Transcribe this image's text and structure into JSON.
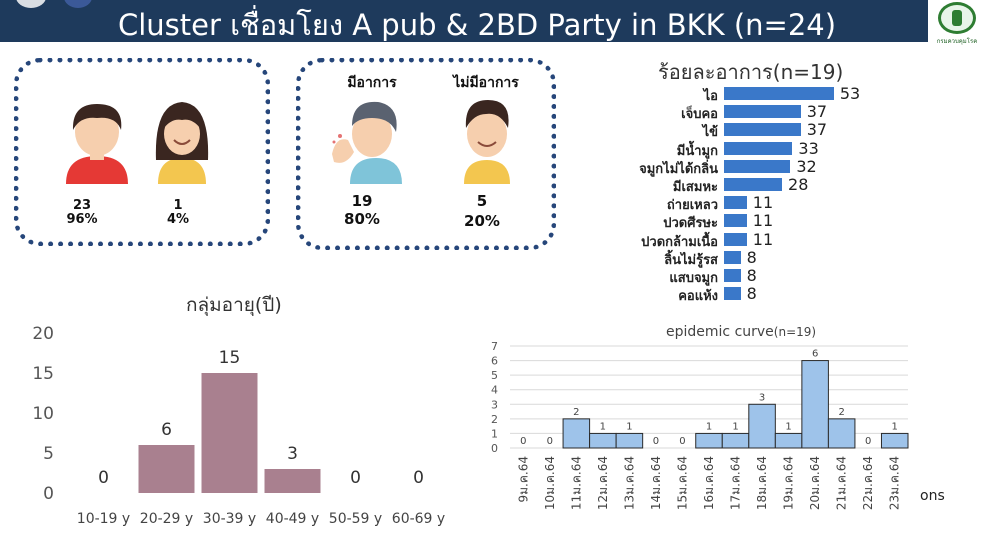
{
  "header": {
    "title": "Cluster เชื่อมโยง A pub & 2BD Party in BKK (n=24)",
    "logo_text": "กรมควบคุมโรค"
  },
  "gender": {
    "male": {
      "count": "23",
      "pct": "96%"
    },
    "female": {
      "count": "1",
      "pct": "4%"
    }
  },
  "symptom_status": {
    "symptomatic": {
      "label": "มีอาการ",
      "count": "19",
      "pct": "80%"
    },
    "asymptomatic": {
      "label": "ไม่มีอาการ",
      "count": "5",
      "pct": "20%"
    }
  },
  "colors": {
    "header": "#1e3a5c",
    "symptom_bar": "#3a78c9",
    "age_bar": "#a9808f",
    "epi_bar": "#9ec3ea"
  },
  "chart_data": [
    {
      "type": "bar",
      "orientation": "horizontal",
      "title": "ร้อยละอาการ(n=19)",
      "categories": [
        "ไอ",
        "เจ็บคอ",
        "ไข้",
        "มีน้ำมูก",
        "จมูกไม่ได้กลิ่น",
        "มีเสมหะ",
        "ถ่ายเหลว",
        "ปวดศีรษะ",
        "ปวดกล้ามเนื้อ",
        "ลิ้นไม่รู้รส",
        "แสบจมูก",
        "คอแห้ง"
      ],
      "values": [
        53,
        37,
        37,
        33,
        32,
        28,
        11,
        11,
        11,
        8,
        8,
        8
      ],
      "xlim": [
        0,
        55
      ]
    },
    {
      "type": "bar",
      "title": "กลุ่มอายุ(ปี)",
      "categories": [
        "10-19 y",
        "20-29 y",
        "30-39 y",
        "40-49 y",
        "50-59 y",
        "60-69 y"
      ],
      "values": [
        0,
        6,
        15,
        3,
        0,
        0
      ],
      "ylim": [
        0,
        20
      ],
      "yticks": [
        0,
        5,
        10,
        15,
        20
      ],
      "grid": false
    },
    {
      "type": "bar",
      "title": "epidemic curve",
      "title_suffix": "(n=19)",
      "categories": [
        "9ม.ค.64",
        "10ม.ค.64",
        "11ม.ค.64",
        "12ม.ค.64",
        "13ม.ค.64",
        "14ม.ค.64",
        "15ม.ค.64",
        "16ม.ค.64",
        "17ม.ค.64",
        "18ม.ค.64",
        "19ม.ค.64",
        "20ม.ค.64",
        "21ม.ค.64",
        "22ม.ค.64",
        "23ม.ค.64"
      ],
      "values": [
        0,
        0,
        2,
        1,
        1,
        0,
        0,
        1,
        1,
        3,
        1,
        6,
        2,
        0,
        1
      ],
      "ylim": [
        0,
        7
      ],
      "yticks": [
        0,
        1,
        2,
        3,
        4,
        5,
        6,
        7
      ],
      "grid": true
    }
  ],
  "footer_fragment": "ons"
}
